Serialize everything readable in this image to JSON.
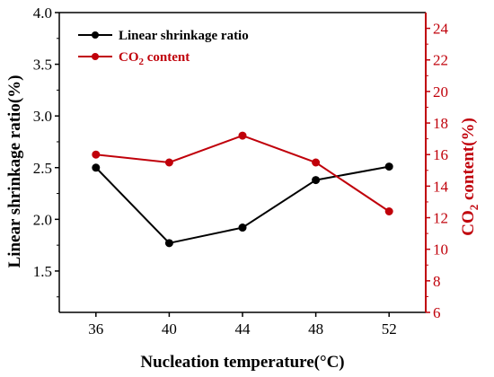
{
  "chart_data": {
    "type": "line",
    "x": [
      36,
      40,
      44,
      48,
      52
    ],
    "xlabel": "Nucleation temperature(°C)",
    "xlim": [
      34,
      54
    ],
    "xticks": [
      "36",
      "40",
      "44",
      "48",
      "52"
    ],
    "y_left": {
      "label": "Linear shrinkage ratio(%)",
      "lim": [
        1.1,
        4.0
      ],
      "ticks": [
        "1.5",
        "2.0",
        "2.5",
        "3.0",
        "3.5",
        "4.0"
      ],
      "color": "#000000"
    },
    "y_right": {
      "label_main": "CO",
      "label_sub": "2",
      "label_rest": " content(%)",
      "lim": [
        6,
        25
      ],
      "ticks": [
        "6",
        "8",
        "10",
        "12",
        "14",
        "16",
        "18",
        "20",
        "22",
        "24"
      ],
      "color": "#c0000a"
    },
    "series": [
      {
        "name": "Linear shrinkage ratio",
        "axis": "left",
        "color": "#000000",
        "values": [
          2.5,
          1.77,
          1.92,
          2.38,
          2.51
        ]
      },
      {
        "name_main": "CO",
        "name_sub": "2",
        "name_rest": " content",
        "axis": "right",
        "color": "#c0000a",
        "values": [
          16.0,
          15.5,
          17.2,
          15.5,
          12.4
        ]
      }
    ],
    "legend": "top-left",
    "grid": false
  }
}
